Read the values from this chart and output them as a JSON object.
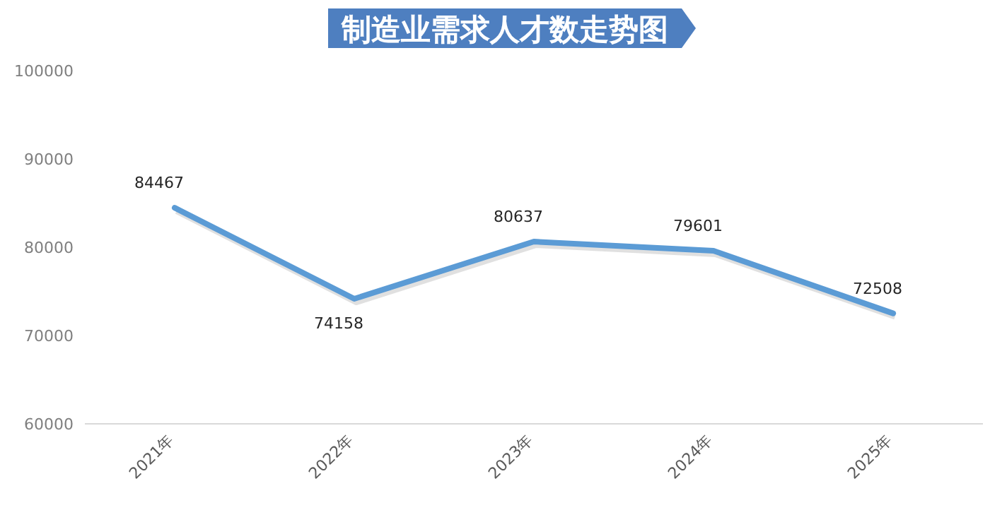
{
  "chart_data": {
    "type": "line",
    "title": "制造业需求人才数走势图",
    "categories": [
      "2021年",
      "2022年",
      "2023年",
      "2024年",
      "2025年"
    ],
    "series": [
      {
        "color": "#5b9bd5",
        "values": [
          84467,
          74158,
          80637,
          79601,
          72508
        ]
      }
    ],
    "ylim": [
      60000,
      100000
    ],
    "yticks": [
      60000,
      70000,
      80000,
      90000,
      100000
    ],
    "data_labels": true,
    "marker": "none",
    "line_style": "solid"
  }
}
